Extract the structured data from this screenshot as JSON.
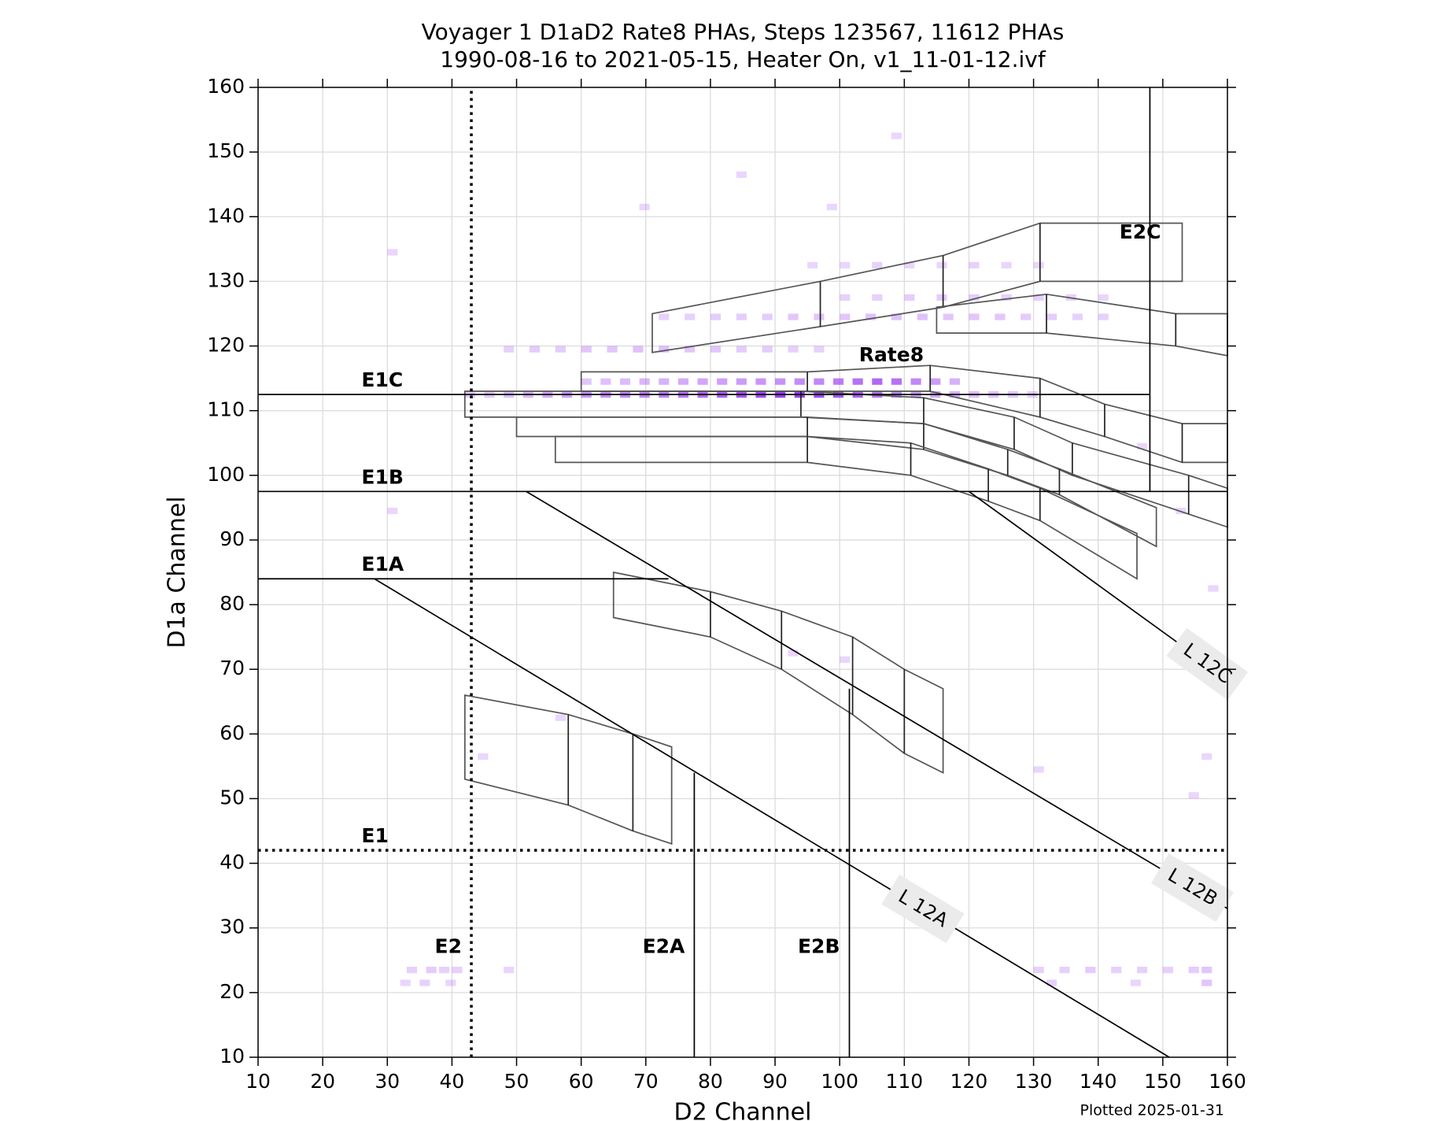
{
  "chart_data": {
    "type": "heatmap2d",
    "title": "Voyager 1 D1aD2 Rate8 PHAs, Steps 123567, 11612 PHAs",
    "subtitle": "1990-08-16 to 2021-05-15, Heater On, v1_11-01-12.ivf",
    "xlabel": "D2 Channel",
    "ylabel": "D1a Channel",
    "footnote": "Plotted 2025-01-31",
    "xlim": [
      10,
      160
    ],
    "ylim": [
      10,
      160
    ],
    "xticks": [
      10,
      20,
      30,
      40,
      50,
      60,
      70,
      80,
      90,
      100,
      110,
      120,
      130,
      140,
      150,
      160
    ],
    "yticks": [
      10,
      20,
      30,
      40,
      50,
      60,
      70,
      80,
      90,
      100,
      110,
      120,
      130,
      140,
      150,
      160
    ],
    "grid": true,
    "color": "#9b3cf2",
    "rows": [
      {
        "y": 112,
        "x": [
          42,
          45,
          48,
          51,
          54,
          57,
          60,
          63,
          66,
          69,
          72,
          75,
          78,
          81,
          84,
          87,
          90,
          93,
          96,
          99,
          102,
          105,
          108,
          111,
          114,
          117,
          120,
          123,
          126,
          129
        ],
        "values": [
          3,
          4,
          6,
          8,
          10,
          12,
          14,
          15,
          16,
          17,
          18,
          20,
          22,
          24,
          26,
          28,
          30,
          30,
          28,
          26,
          24,
          20,
          16,
          12,
          10,
          8,
          6,
          5,
          4,
          3
        ]
      },
      {
        "y": 114,
        "x": [
          60,
          63,
          66,
          69,
          72,
          75,
          78,
          81,
          84,
          87,
          90,
          93,
          96,
          99,
          102,
          105,
          108,
          111,
          114,
          117
        ],
        "values": [
          4,
          5,
          6,
          7,
          8,
          9,
          10,
          11,
          12,
          13,
          14,
          15,
          16,
          18,
          20,
          22,
          20,
          16,
          12,
          8
        ]
      },
      {
        "y": 119,
        "x": [
          48,
          52,
          56,
          60,
          64,
          68,
          72,
          76,
          80,
          84,
          88,
          92,
          96
        ],
        "values": [
          2,
          3,
          3,
          4,
          4,
          5,
          5,
          4,
          4,
          3,
          3,
          2,
          2
        ]
      },
      {
        "y": 124,
        "x": [
          72,
          76,
          80,
          84,
          88,
          92,
          96,
          100,
          104,
          108,
          112,
          116,
          120,
          124,
          128,
          132,
          136,
          140
        ],
        "values": [
          2,
          2,
          3,
          3,
          3,
          4,
          4,
          4,
          5,
          5,
          5,
          4,
          4,
          4,
          3,
          3,
          2,
          2
        ]
      },
      {
        "y": 127,
        "x": [
          100,
          105,
          110,
          115,
          120,
          125,
          130,
          135,
          140
        ],
        "values": [
          2,
          2,
          3,
          3,
          3,
          2,
          2,
          2,
          1
        ]
      },
      {
        "y": 132,
        "x": [
          95,
          100,
          105,
          110,
          115,
          120,
          125,
          130
        ],
        "values": [
          1,
          1,
          2,
          1,
          1,
          2,
          1,
          1
        ]
      },
      {
        "y": 23,
        "x": [
          33,
          36,
          38,
          40,
          48,
          130,
          134,
          138,
          142,
          146,
          150,
          154,
          156
        ],
        "values": [
          2,
          3,
          2,
          2,
          1,
          2,
          2,
          3,
          2,
          2,
          2,
          3,
          4
        ]
      },
      {
        "y": 21,
        "x": [
          32,
          35,
          39,
          132,
          145,
          156
        ],
        "values": [
          1,
          2,
          1,
          2,
          1,
          4
        ]
      },
      {
        "y": 134,
        "x": [
          30
        ],
        "values": [
          1
        ]
      },
      {
        "y": 56,
        "x": [
          44,
          156
        ],
        "values": [
          1,
          1
        ]
      },
      {
        "y": 62,
        "x": [
          56
        ],
        "values": [
          1
        ]
      },
      {
        "y": 72,
        "x": [
          92
        ],
        "values": [
          1
        ]
      },
      {
        "y": 71,
        "x": [
          100
        ],
        "values": [
          1
        ]
      },
      {
        "y": 152,
        "x": [
          108
        ],
        "values": [
          1
        ]
      },
      {
        "y": 146,
        "x": [
          84
        ],
        "values": [
          1
        ]
      },
      {
        "y": 141,
        "x": [
          69,
          98
        ],
        "values": [
          1,
          1
        ]
      },
      {
        "y": 104,
        "x": [
          146
        ],
        "values": [
          1
        ]
      },
      {
        "y": 94,
        "x": [
          30,
          152
        ],
        "values": [
          1,
          1
        ]
      },
      {
        "y": 82,
        "x": [
          157
        ],
        "values": [
          1
        ]
      },
      {
        "y": 50,
        "x": [
          154
        ],
        "values": [
          1
        ]
      },
      {
        "y": 54,
        "x": [
          130
        ],
        "values": [
          1
        ]
      }
    ],
    "lines": [
      {
        "label": "E1C",
        "x": [
          10,
          148
        ],
        "y": [
          112.5,
          112.5
        ],
        "style": "solid"
      },
      {
        "label": "E1B",
        "x": [
          10,
          160
        ],
        "y": [
          97.5,
          97.5
        ],
        "style": "solid"
      },
      {
        "label": "E1A",
        "x": [
          10,
          73.5
        ],
        "y": [
          84,
          84
        ],
        "style": "solid"
      },
      {
        "label": "E1",
        "x": [
          10,
          160
        ],
        "y": [
          42,
          42
        ],
        "style": "dotted"
      },
      {
        "label": "E2",
        "x": [
          43,
          43
        ],
        "y": [
          10,
          160
        ],
        "style": "dotted"
      },
      {
        "label": "E2A",
        "x": [
          77.5,
          77.5
        ],
        "y": [
          10,
          54
        ],
        "style": "solid"
      },
      {
        "label": "E2B",
        "x": [
          101.5,
          101.5
        ],
        "y": [
          10,
          67
        ],
        "style": "solid"
      },
      {
        "x": [
          148,
          148
        ],
        "y": [
          97.5,
          160
        ],
        "style": "solid"
      },
      {
        "label": "L 12A",
        "x": [
          28,
          151
        ],
        "y": [
          84,
          10
        ],
        "style": "solid"
      },
      {
        "label": "L 12B",
        "x": [
          51.5,
          160
        ],
        "y": [
          97.5,
          33
        ],
        "style": "solid"
      },
      {
        "label": "L 12C",
        "x": [
          120,
          158
        ],
        "y": [
          97.5,
          70
        ],
        "style": "solid"
      }
    ],
    "regions": [
      {
        "x": [
          42,
          58,
          68,
          74,
          74,
          68,
          58,
          42
        ],
        "y": [
          66,
          63,
          60,
          58,
          43,
          45,
          49,
          53
        ]
      },
      {
        "x": [
          65,
          80,
          91,
          102,
          110,
          116,
          116,
          110,
          102,
          91,
          80,
          65
        ],
        "y": [
          85,
          82,
          79,
          75,
          70,
          67,
          54,
          57,
          63,
          70,
          75,
          78
        ]
      },
      {
        "name": "E2C",
        "x": [
          71,
          97,
          116,
          131,
          153,
          153,
          131,
          116,
          97,
          71
        ],
        "y": [
          125,
          130,
          134,
          139,
          139,
          130,
          130,
          126,
          123,
          119
        ]
      },
      {
        "x": [
          115,
          132,
          152,
          160,
          160,
          152,
          132,
          115
        ],
        "y": [
          126,
          128,
          125,
          125,
          118.5,
          120,
          122,
          122
        ]
      },
      {
        "name": "Rate8",
        "x": [
          60,
          95,
          114,
          131,
          141,
          153,
          160,
          160,
          153,
          141,
          131,
          114,
          95,
          60
        ],
        "y": [
          116,
          116,
          117,
          115,
          111,
          108,
          108,
          102,
          102,
          106,
          109,
          113,
          113,
          113
        ]
      },
      {
        "x": [
          42,
          94,
          113,
          127,
          136,
          154,
          160,
          160,
          154,
          136,
          127,
          113,
          94,
          42
        ],
        "y": [
          113,
          113,
          112,
          109,
          105,
          100,
          98,
          92,
          94,
          100,
          104,
          108,
          109,
          109
        ]
      },
      {
        "x": [
          50,
          95,
          113,
          126,
          134,
          149,
          149,
          134,
          126,
          113,
          95,
          50
        ],
        "y": [
          109,
          109,
          108,
          104,
          101,
          95,
          89,
          97,
          100,
          104,
          106,
          106
        ]
      },
      {
        "x": [
          56,
          95,
          111,
          123,
          131,
          146,
          146,
          131,
          123,
          111,
          95,
          56
        ],
        "y": [
          106,
          106,
          105,
          101,
          98,
          91,
          84,
          93,
          96,
          100,
          102,
          102
        ]
      }
    ]
  }
}
